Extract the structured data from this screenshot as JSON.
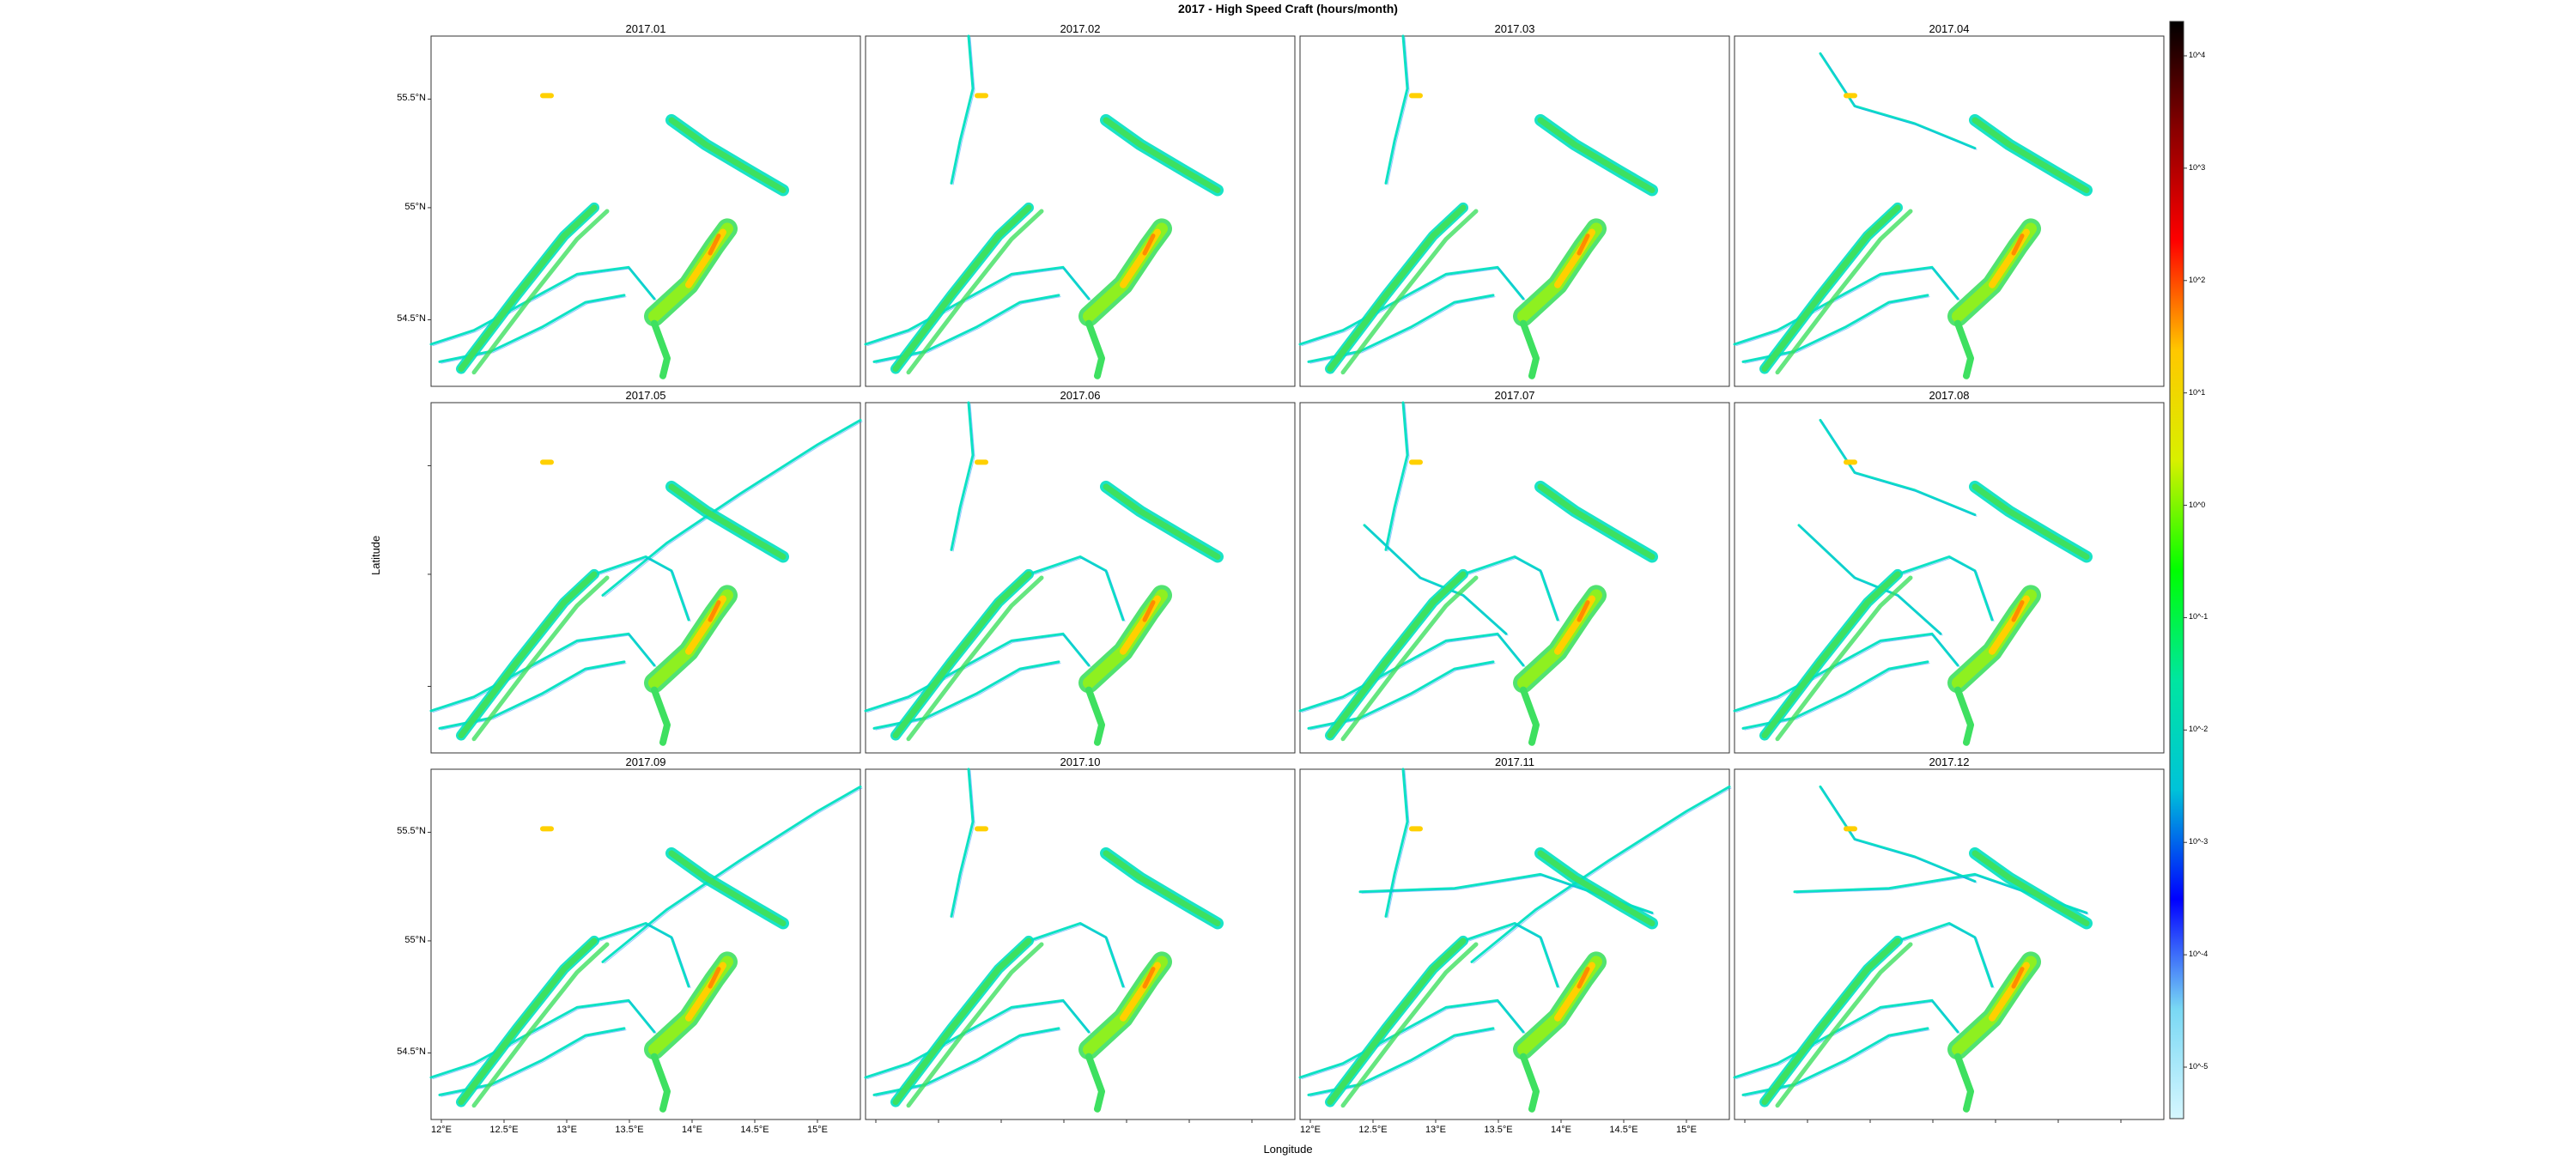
{
  "title": "2017 - High Speed Craft (hours/month)",
  "xlabel": "Longitude",
  "ylabel": "Latitude",
  "panels": [
    "2017.01",
    "2017.02",
    "2017.03",
    "2017.04",
    "2017.05",
    "2017.06",
    "2017.07",
    "2017.08",
    "2017.09",
    "2017.10",
    "2017.11",
    "2017.12"
  ],
  "x_tick_labels": [
    "12°E",
    "12.5°E",
    "13°E",
    "13.5°E",
    "14°E",
    "14.5°E",
    "15°E"
  ],
  "y_tick_labels": [
    "54.5°N",
    "55°N",
    "55.5°N"
  ],
  "colorbar": {
    "tick_labels": [
      "10^-5",
      "10^-4",
      "10^-3",
      "10^-2",
      "10^-1",
      "10^0",
      "10^1",
      "10^2",
      "10^3",
      "10^4"
    ],
    "colors": [
      "#d6f7ff",
      "#79d8f4",
      "#0000ff",
      "#00c3d9",
      "#00e6a0",
      "#00ff00",
      "#d8f000",
      "#ffc800",
      "#ff0000",
      "#8b0000",
      "#000000"
    ]
  },
  "map_colors": {
    "track": "#00e0c0",
    "track_dark": "#1e90ff",
    "route": "#3ee060",
    "route_bright": "#8ef020",
    "hot": "#ffd000",
    "hotter": "#ff8c00"
  }
}
